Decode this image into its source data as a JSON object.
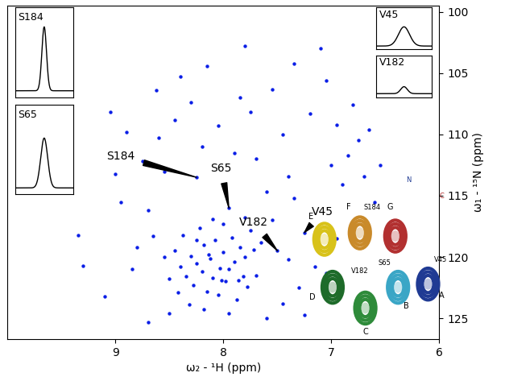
{
  "chart_data": {
    "type": "scatter",
    "x_label": "ω₂ - ¹H (ppm)",
    "y_label": "ω₁ - ¹⁵N (ppm)",
    "xlim": [
      10,
      6
    ],
    "ylim": [
      126.7,
      99.5
    ],
    "xticks": [
      9,
      8,
      7,
      6
    ],
    "yticks": [
      100,
      105,
      110,
      115,
      120,
      125
    ],
    "color": "#0a1ee6",
    "marker": "o",
    "grid": false,
    "x": [
      9.35,
      9.05,
      9.0,
      8.95,
      8.85,
      8.9,
      8.75,
      8.7,
      8.6,
      8.62,
      8.55,
      8.45,
      8.4,
      8.3,
      8.25,
      8.2,
      8.15,
      8.05,
      7.95,
      7.9,
      7.85,
      7.75,
      7.7,
      7.6,
      7.55,
      7.5,
      7.45,
      7.4,
      7.35,
      7.25,
      7.2,
      7.15,
      7.1,
      7.05,
      7.0,
      6.95,
      6.9,
      6.85,
      6.8,
      6.75,
      6.7,
      6.65,
      6.55,
      7.3,
      7.45,
      7.6,
      7.7,
      7.8,
      8.5,
      8.7,
      9.1,
      9.3,
      8.8,
      8.65,
      7.65,
      7.55,
      7.4,
      7.25,
      7.05,
      6.95,
      6.6,
      7.8,
      7.35,
      8.45,
      8.4,
      8.35,
      8.3,
      8.28,
      8.25,
      8.2,
      8.18,
      8.15,
      8.12,
      8.1,
      8.08,
      8.05,
      8.03,
      8.0,
      7.98,
      7.95,
      7.92,
      7.9,
      7.88,
      7.85,
      7.82,
      7.8,
      7.78,
      8.38,
      8.22,
      8.1,
      8.0,
      8.32,
      8.18,
      7.95,
      8.5,
      8.55,
      8.42,
      7.72,
      7.75,
      8.25,
      8.02,
      8.14,
      7.86
    ],
    "y": [
      118.2,
      108.2,
      113.2,
      115.5,
      121.0,
      109.8,
      112.2,
      116.2,
      110.3,
      106.4,
      113.0,
      108.8,
      105.3,
      107.4,
      113.5,
      111.0,
      104.4,
      109.3,
      116.0,
      111.5,
      107.0,
      108.2,
      112.0,
      114.7,
      106.3,
      119.5,
      110.0,
      113.4,
      115.2,
      118.0,
      108.3,
      120.8,
      103.0,
      105.6,
      112.5,
      109.2,
      114.1,
      111.7,
      107.6,
      110.5,
      113.4,
      109.6,
      112.5,
      122.5,
      123.8,
      125.0,
      121.5,
      116.8,
      124.6,
      125.3,
      123.2,
      120.7,
      119.2,
      118.3,
      118.8,
      117.0,
      120.2,
      124.7,
      121.3,
      118.5,
      115.5,
      102.8,
      104.2,
      119.5,
      120.8,
      121.6,
      119.9,
      122.3,
      120.5,
      121.2,
      119.0,
      122.8,
      120.1,
      121.7,
      118.6,
      123.1,
      120.9,
      119.6,
      122.0,
      121.0,
      118.4,
      120.4,
      123.5,
      119.2,
      121.6,
      120.0,
      122.4,
      118.2,
      117.6,
      116.9,
      117.3,
      123.9,
      124.3,
      124.6,
      121.8,
      120.0,
      122.9,
      119.4,
      117.8,
      118.6,
      121.9,
      119.8,
      121.9
    ],
    "annotations": [
      {
        "text": "S184",
        "x": 8.25,
        "y": 113.5,
        "text_x": 8.95,
        "text_y": 111.8
      },
      {
        "text": "S65",
        "x": 7.95,
        "y": 116.0,
        "text_x": 8.02,
        "text_y": 112.8
      },
      {
        "text": "V182",
        "x": 7.5,
        "y": 119.5,
        "text_x": 7.72,
        "text_y": 117.2
      },
      {
        "text": "V45",
        "x": 7.25,
        "y": 118.0,
        "text_x": 7.08,
        "text_y": 116.3
      }
    ],
    "insets": [
      {
        "label": "S184",
        "height": 1.0,
        "width": 0.08
      },
      {
        "label": "S65",
        "height": 0.78,
        "width": 0.12
      },
      {
        "label": "V45",
        "height": 0.55,
        "width": 0.2
      },
      {
        "label": "V182",
        "height": 0.2,
        "width": 0.12
      }
    ],
    "structure": {
      "helices": [
        {
          "label": "A",
          "color": "#1f3a93"
        },
        {
          "label": "B",
          "color": "#3aa6c6"
        },
        {
          "label": "C",
          "color": "#2e8b3a"
        },
        {
          "label": "D",
          "color": "#1e6b2a"
        },
        {
          "label": "E",
          "color": "#d8c21a"
        },
        {
          "label": "F",
          "color": "#c98a2a"
        },
        {
          "label": "G",
          "color": "#b23030"
        }
      ],
      "termini": [
        "N",
        "C"
      ],
      "residues": [
        "S184",
        "V45",
        "S65",
        "V182"
      ]
    }
  }
}
